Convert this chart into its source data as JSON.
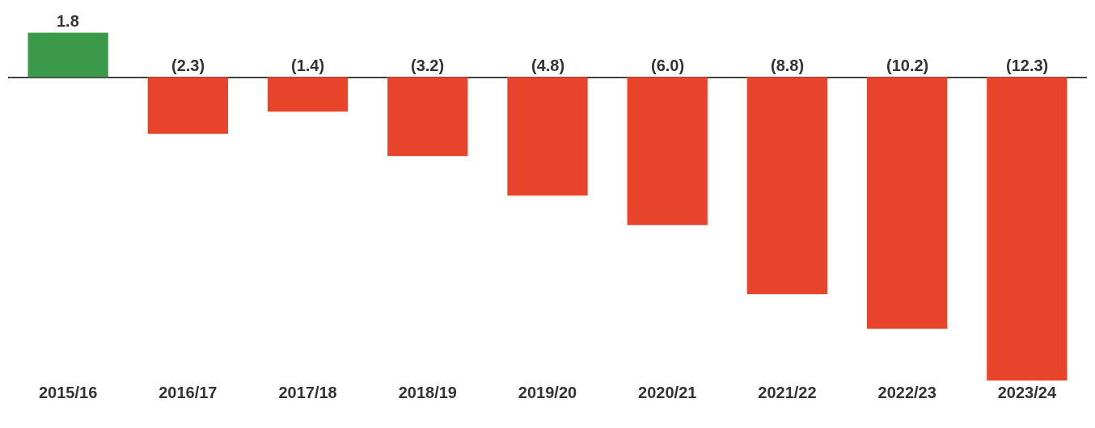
{
  "chart_data": {
    "type": "bar",
    "categories": [
      "2015/16",
      "2016/17",
      "2017/18",
      "2018/19",
      "2019/20",
      "2020/21",
      "2021/22",
      "2022/23",
      "2023/24"
    ],
    "values": [
      1.8,
      -2.3,
      -1.4,
      -3.2,
      -4.8,
      -6.0,
      -8.8,
      -10.2,
      -12.3
    ],
    "colors": [
      "#3a9a4a",
      "#e8442c",
      "#e8442c",
      "#e8442c",
      "#e8442c",
      "#e8442c",
      "#e8442c",
      "#e8442c",
      "#e8442c"
    ],
    "value_labels": [
      "1.8",
      "(2.3)",
      "(1.4)",
      "(3.2)",
      "(4.8)",
      "(6.0)",
      "(8.8)",
      "(10.2)",
      "(12.3)"
    ],
    "grid": false,
    "legend": false
  }
}
